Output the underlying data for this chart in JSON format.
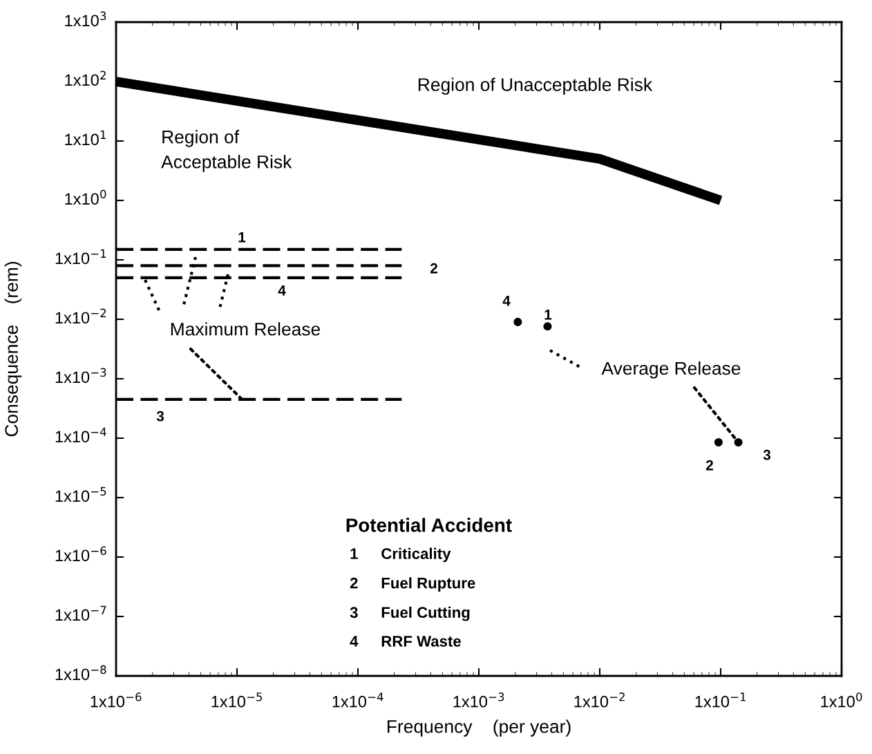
{
  "chart_data": {
    "type": "line",
    "xlabel": "Frequency    (per year)",
    "ylabel": "Consequence    (rem)",
    "log": "xy",
    "grid": false,
    "xlim": [
      1e-06,
      1
    ],
    "ylim": [
      1e-08,
      1000
    ],
    "xticks": [
      {
        "value": 1e-06,
        "label": "1x10$^{−6}$"
      },
      {
        "value": 1e-05,
        "label": "1x10$^{−5}$"
      },
      {
        "value": 0.0001,
        "label": "1x10$^{−4}$"
      },
      {
        "value": 0.001,
        "label": "1x10$^{−3}$"
      },
      {
        "value": 0.01,
        "label": "1x10$^{−2}$"
      },
      {
        "value": 0.1,
        "label": "1x10$^{−1}$"
      },
      {
        "value": 1,
        "label": "1x10$^{0}$"
      }
    ],
    "yticks": [
      {
        "value": 1e-08,
        "label": "1x10$^{−8}$"
      },
      {
        "value": 1e-07,
        "label": "1x10$^{−7}$"
      },
      {
        "value": 1e-06,
        "label": "1x10$^{−6}$"
      },
      {
        "value": 1e-05,
        "label": "1x10$^{−5}$"
      },
      {
        "value": 0.0001,
        "label": "1x10$^{−4}$"
      },
      {
        "value": 0.001,
        "label": "1x10$^{−3}$"
      },
      {
        "value": 0.01,
        "label": "1x10$^{−2}$"
      },
      {
        "value": 0.1,
        "label": "1x10$^{−1}$"
      },
      {
        "value": 1,
        "label": "1x10$^{0}$"
      },
      {
        "value": 10,
        "label": "1x10$^{1}$"
      },
      {
        "value": 100,
        "label": "1x10$^{2}$"
      },
      {
        "value": 1000,
        "label": "1x10$^{3}$"
      }
    ],
    "series": [
      {
        "color": "#000000",
        "line_style": "solid",
        "x": [
          1e-06,
          0.01,
          0.1
        ],
        "values": [
          100,
          5,
          1
        ]
      },
      {
        "color": "#000000",
        "line_style": "dashed",
        "x": [
          1e-06,
          0.00023
        ],
        "values": [
          0.15,
          0.15
        ]
      },
      {
        "color": "#000000",
        "line_style": "dashed",
        "x": [
          1e-06,
          0.00023
        ],
        "values": [
          0.08,
          0.08
        ]
      },
      {
        "color": "#000000",
        "line_style": "dashed",
        "x": [
          1e-06,
          0.00023
        ],
        "values": [
          0.05,
          0.05
        ]
      },
      {
        "color": "#000000",
        "line_style": "dashed",
        "x": [
          1e-06,
          0.00023
        ],
        "values": [
          0.00045,
          0.00045
        ]
      },
      {
        "type": "scatter",
        "color": "#000000",
        "marker": "circle",
        "x": [
          0.0021,
          0.0037,
          0.096,
          0.14
        ],
        "values": [
          0.009,
          0.0076,
          8.5e-05,
          8.5e-05
        ]
      }
    ],
    "annotations": [
      "Region of Unacceptable Risk",
      "Region of\nAcceptable Risk",
      {
        "text": "Maximum Release",
        "x": 1.1e-05,
        "y": 0.00045
      },
      {
        "text": "Average Release",
        "x": 0.14,
        "y": 8.5e-05
      },
      "Potential Accident",
      "1",
      "Criticality",
      "2",
      "Fuel Rupture",
      "3",
      "Fuel Cutting",
      "4",
      "RRF Waste",
      "1",
      "2",
      "4",
      "3",
      "4",
      "1",
      "2",
      "3"
    ]
  }
}
